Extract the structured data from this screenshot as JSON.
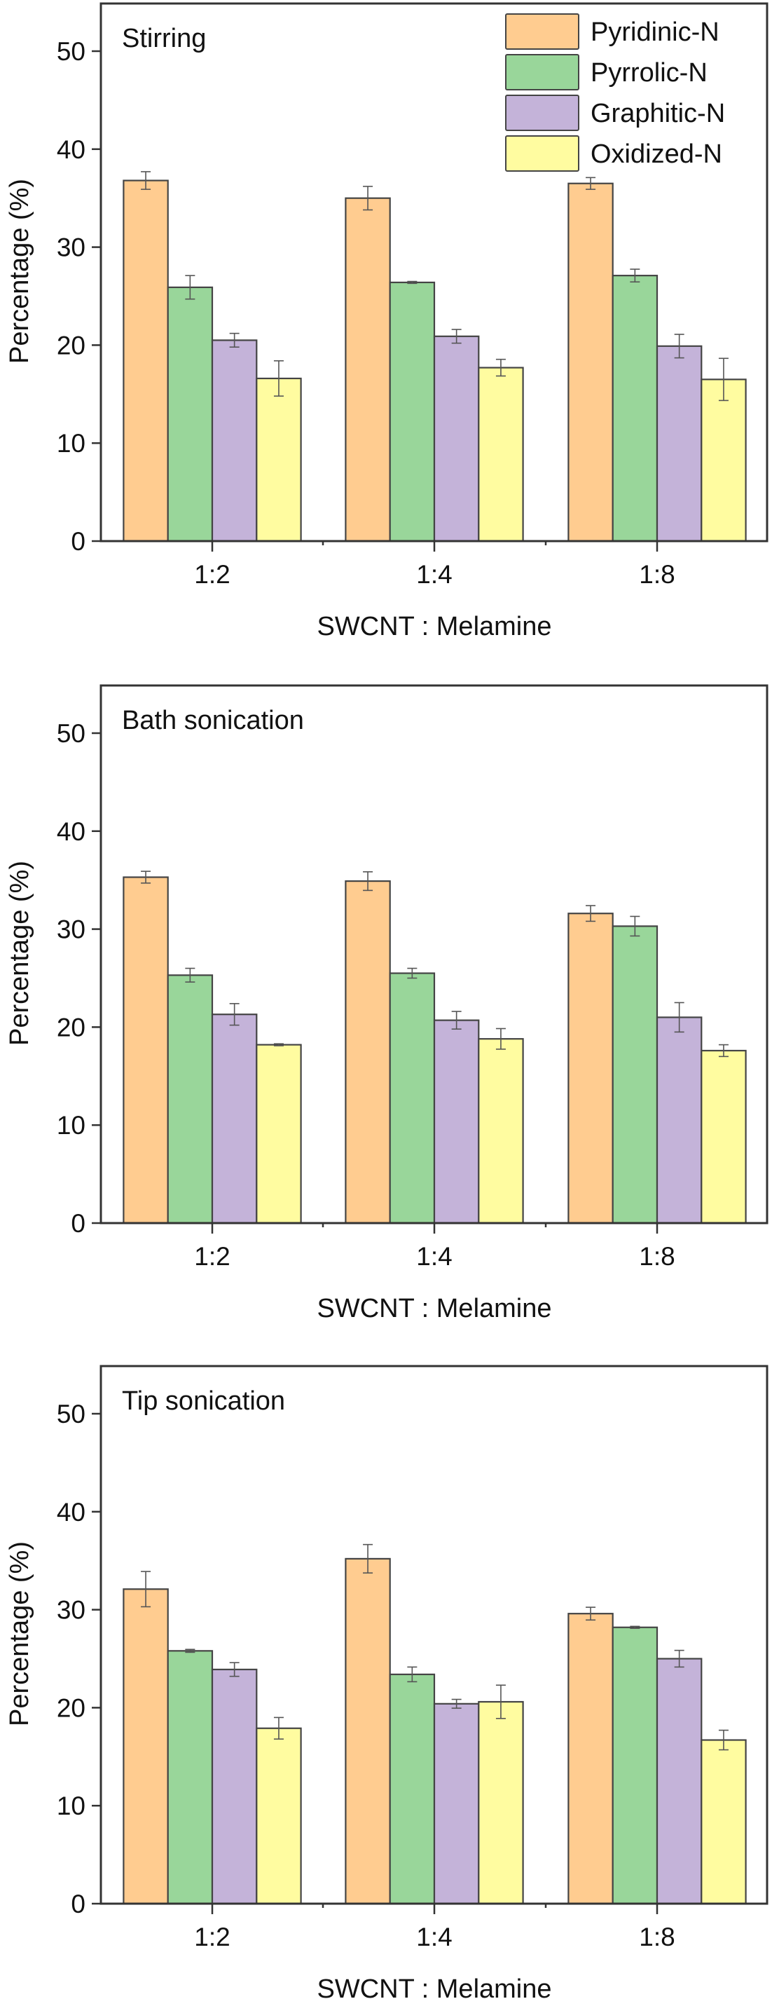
{
  "chart_data": [
    {
      "type": "bar",
      "title": "Stirring",
      "xlabel": "SWCNT : Melamine",
      "ylabel": "Percentage (%)",
      "ylim": [
        0,
        53
      ],
      "yticks": [
        0,
        10,
        20,
        30,
        40,
        50
      ],
      "grid": false,
      "legend_position": "top-right",
      "categories": [
        "1:2",
        "1:4",
        "1:8"
      ],
      "series": [
        {
          "name": "Pyridinic-N",
          "color": "#FFCC90",
          "values": [
            36.8,
            35.0,
            36.5
          ],
          "errors": [
            0.9,
            1.2,
            0.6
          ]
        },
        {
          "name": "Pyrrolic-N",
          "color": "#99D69A",
          "values": [
            25.9,
            26.4,
            27.1
          ],
          "errors": [
            1.2,
            0.1,
            0.65
          ]
        },
        {
          "name": "Graphitic-N",
          "color": "#C4B3D9",
          "values": [
            20.5,
            20.9,
            19.9
          ],
          "errors": [
            0.7,
            0.7,
            1.2
          ]
        },
        {
          "name": "Oxidized-N",
          "color": "#FFFCA0",
          "values": [
            16.6,
            17.7,
            16.5
          ],
          "errors": [
            1.8,
            0.85,
            2.15
          ]
        }
      ]
    },
    {
      "type": "bar",
      "title": "Bath sonication",
      "xlabel": "SWCNT : Melamine",
      "ylabel": "Percentage (%)",
      "ylim": [
        0,
        53
      ],
      "yticks": [
        0,
        10,
        20,
        30,
        40,
        50
      ],
      "grid": false,
      "categories": [
        "1:2",
        "1:4",
        "1:8"
      ],
      "series": [
        {
          "name": "Pyridinic-N",
          "color": "#FFCC90",
          "values": [
            35.3,
            34.9,
            31.6
          ],
          "errors": [
            0.6,
            0.95,
            0.8
          ]
        },
        {
          "name": "Pyrrolic-N",
          "color": "#99D69A",
          "values": [
            25.3,
            25.5,
            30.3
          ],
          "errors": [
            0.7,
            0.5,
            1.0
          ]
        },
        {
          "name": "Graphitic-N",
          "color": "#C4B3D9",
          "values": [
            21.3,
            20.7,
            21.0
          ],
          "errors": [
            1.1,
            0.9,
            1.5
          ]
        },
        {
          "name": "Oxidized-N",
          "color": "#FFFCA0",
          "values": [
            18.2,
            18.8,
            17.6
          ],
          "errors": [
            0.1,
            1.05,
            0.6
          ]
        }
      ]
    },
    {
      "type": "bar",
      "title": "Tip sonication",
      "xlabel": "SWCNT : Melamine",
      "ylabel": "Percentage (%)",
      "ylim": [
        0,
        53
      ],
      "yticks": [
        0,
        10,
        20,
        30,
        40,
        50
      ],
      "grid": false,
      "categories": [
        "1:2",
        "1:4",
        "1:8"
      ],
      "series": [
        {
          "name": "Pyridinic-N",
          "color": "#FFCC90",
          "values": [
            32.1,
            35.2,
            29.6
          ],
          "errors": [
            1.8,
            1.45,
            0.65
          ]
        },
        {
          "name": "Pyrrolic-N",
          "color": "#99D69A",
          "values": [
            25.8,
            23.4,
            28.2
          ],
          "errors": [
            0.15,
            0.75,
            0.1
          ]
        },
        {
          "name": "Graphitic-N",
          "color": "#C4B3D9",
          "values": [
            23.9,
            20.4,
            25.0
          ],
          "errors": [
            0.7,
            0.45,
            0.85
          ]
        },
        {
          "name": "Oxidized-N",
          "color": "#FFFCA0",
          "values": [
            17.9,
            20.6,
            16.7
          ],
          "errors": [
            1.1,
            1.7,
            1.0
          ]
        }
      ]
    }
  ],
  "legend": {
    "items": [
      "Pyridinic-N",
      "Pyrrolic-N",
      "Graphitic-N",
      "Oxidized-N"
    ],
    "colors": [
      "#FFCC90",
      "#99D69A",
      "#C4B3D9",
      "#FFFCA0"
    ]
  },
  "style": {
    "axis_color": "#333333",
    "bar_edge_color": "#444444",
    "errorbar_color": "#555555"
  }
}
